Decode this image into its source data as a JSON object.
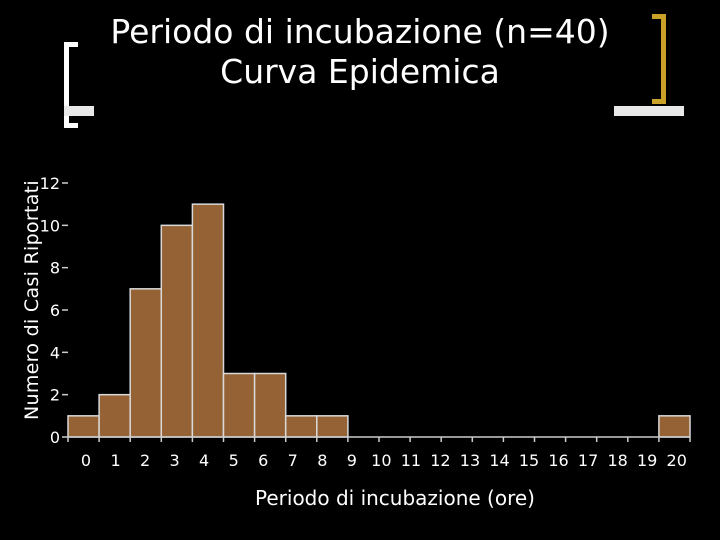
{
  "title_lines": [
    "Periodo di incubazione (n=40)",
    "Curva Epidemica"
  ],
  "colors": {
    "background": "#000000",
    "bar_fill": "#946234",
    "bar_stroke": "#d9d9d9",
    "axis": "#cccccc",
    "text": "#ffffff",
    "accent_bracket": "#c9a227"
  },
  "chart_data": {
    "type": "bar",
    "title": "Periodo di incubazione (n=40) Curva Epidemica",
    "xlabel": "Periodo di incubazione (ore)",
    "ylabel": "Numero di Casi Riportati",
    "x_ticks": [
      "0",
      "1",
      "2",
      "3",
      "4",
      "5",
      "6",
      "7",
      "8",
      "9",
      "10",
      "11",
      "12",
      "13",
      "14",
      "15",
      "16",
      "17",
      "18",
      "19",
      "20"
    ],
    "y_ticks": [
      "0",
      "2",
      "4",
      "6",
      "8",
      "10",
      "12"
    ],
    "ylim": [
      0,
      12
    ],
    "xlim": [
      0,
      20
    ],
    "bins": [
      {
        "start": 0,
        "end": 1,
        "value": 1
      },
      {
        "start": 1,
        "end": 2,
        "value": 2
      },
      {
        "start": 2,
        "end": 3,
        "value": 7
      },
      {
        "start": 3,
        "end": 4,
        "value": 10
      },
      {
        "start": 4,
        "end": 5,
        "value": 11
      },
      {
        "start": 5,
        "end": 6,
        "value": 3
      },
      {
        "start": 6,
        "end": 7,
        "value": 3
      },
      {
        "start": 7,
        "end": 8,
        "value": 1
      },
      {
        "start": 8,
        "end": 9,
        "value": 1
      },
      {
        "start": 19,
        "end": 20,
        "value": 1
      }
    ],
    "grid": false,
    "legend": "none"
  }
}
